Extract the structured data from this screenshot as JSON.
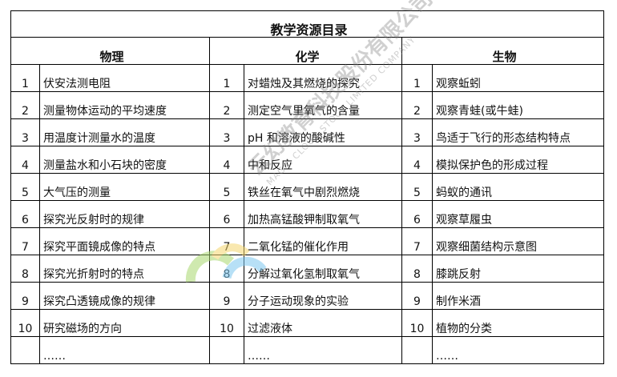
{
  "title": "教学资源目录",
  "columns": [
    {
      "subject": "物理",
      "items": [
        "伏安法测电阻",
        "测量物体运动的平均速度",
        "用温度计测量水的温度",
        "测量盐水和小石块的密度",
        "大气压的测量",
        "探究光反射时的规律",
        "探究平面镜成像的特点",
        "探究光折射时的特点",
        "探究凸透镜成像的规律",
        "研究磁场的方向",
        "……"
      ]
    },
    {
      "subject": "化学",
      "items": [
        "对蜡烛及其燃烧的探究",
        "测定空气里氧气的含量",
        "pH 和溶液的酸碱性",
        "中和反应",
        "铁丝在氧气中剧烈燃烧",
        "加热高锰酸钾制取氧气",
        "二氧化锰的催化作用",
        "分解过氧化氢制取氧气",
        "分子运动现象的实验",
        "过滤液体",
        "……"
      ]
    },
    {
      "subject": "生物",
      "items": [
        "观察蚯蚓",
        "观察青蛙(或牛蛙)",
        "鸟适于飞行的形态结构特点",
        "模拟保护色的形成过程",
        "蚂蚁的通讯",
        "观察草履虫",
        "观察细菌结构示意图",
        "膝跳反射",
        "制作米酒",
        "植物的分类",
        "……"
      ]
    }
  ],
  "numbers": [
    "1",
    "2",
    "3",
    "4",
    "5",
    "6",
    "7",
    "8",
    "9",
    "10",
    ""
  ],
  "watermark": {
    "text": "云幻教育科技股份有限公司",
    "subtext": "MAGIC CLOUD STOCK LIMITED COMPANY",
    "colors": [
      "#f5d76e",
      "#a8d86e",
      "#7ec8f0"
    ]
  }
}
